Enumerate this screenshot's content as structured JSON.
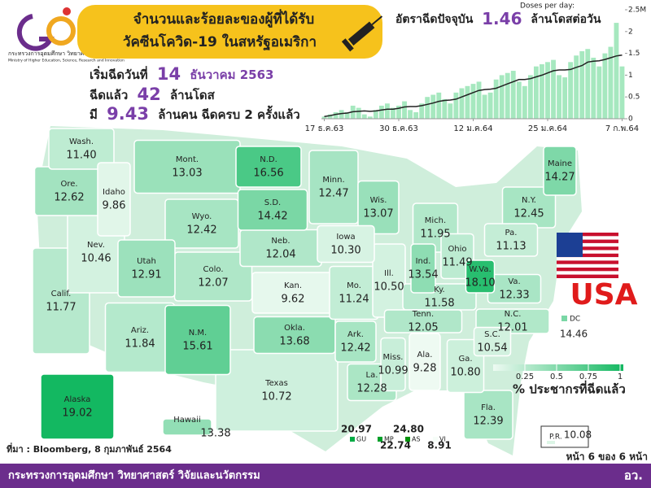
{
  "header": {
    "org": "กระทรวงการอุดมศึกษา วิทยาศาสตร์ วิจัยและนวัตกรรม",
    "org_en": "Ministry of Higher Education, Science, Research and Innovation",
    "title_lines": [
      "จำนวนและร้อยละของผู้ที่ได้รับ",
      "วัคซีนโควิด-19 ในสหรัฐอเมริกา"
    ]
  },
  "stats": {
    "start": {
      "prefix": "เริ่มฉีดวันที่",
      "value": 14,
      "suffix": "ธันวาคม 2563"
    },
    "doses": {
      "prefix": "ฉีดแล้ว",
      "value": 42,
      "suffix": "ล้านโดส"
    },
    "full": {
      "prefix": "มี",
      "value": 9.43,
      "suffix": "ล้านคน ฉีดครบ 2 ครั้งแล้ว"
    },
    "rate": {
      "prefix": "อัตราฉีดปัจจุบัน",
      "value": 1.46,
      "suffix": "ล้านโดสต่อวัน"
    }
  },
  "chart_data": {
    "type": "bar",
    "title": "Doses per day:",
    "color": "#a6e8bf",
    "line_color": "#222222",
    "categories": [
      "17 ธ.ค.63",
      null,
      null,
      null,
      null,
      null,
      null,
      null,
      null,
      null,
      null,
      null,
      null,
      "30 ธ.ค.63",
      null,
      null,
      null,
      null,
      null,
      null,
      null,
      null,
      null,
      null,
      null,
      null,
      "12 ม.ค.64",
      null,
      null,
      null,
      null,
      null,
      null,
      null,
      null,
      null,
      null,
      null,
      null,
      "25 ม.ค.64",
      null,
      null,
      null,
      null,
      null,
      null,
      null,
      null,
      null,
      null,
      null,
      null,
      "7 ก.พ.64"
    ],
    "values": [
      0.05,
      0.1,
      0.15,
      0.2,
      0.15,
      0.3,
      0.25,
      0.1,
      0.05,
      0.2,
      0.3,
      0.35,
      0.25,
      0.3,
      0.4,
      0.2,
      0.15,
      0.35,
      0.5,
      0.55,
      0.6,
      0.45,
      0.35,
      0.6,
      0.7,
      0.75,
      0.8,
      0.85,
      0.55,
      0.6,
      0.9,
      1.0,
      1.05,
      1.1,
      0.85,
      0.75,
      1.0,
      1.2,
      1.25,
      1.3,
      1.35,
      1.0,
      0.95,
      1.3,
      1.45,
      1.55,
      1.6,
      1.4,
      1.2,
      1.5,
      1.65,
      2.2,
      1.2
    ],
    "line_values": [
      0.05,
      0.07,
      0.1,
      0.12,
      0.13,
      0.16,
      0.17,
      0.18,
      0.17,
      0.18,
      0.2,
      0.22,
      0.22,
      0.24,
      0.27,
      0.28,
      0.28,
      0.3,
      0.33,
      0.36,
      0.4,
      0.42,
      0.43,
      0.45,
      0.5,
      0.55,
      0.6,
      0.65,
      0.67,
      0.68,
      0.7,
      0.75,
      0.8,
      0.85,
      0.9,
      0.9,
      0.92,
      0.96,
      1.0,
      1.05,
      1.1,
      1.12,
      1.12,
      1.13,
      1.18,
      1.22,
      1.3,
      1.32,
      1.33,
      1.36,
      1.4,
      1.44,
      1.46
    ],
    "ylim": [
      0,
      2.5
    ],
    "yticks": [
      0,
      0.5,
      1,
      1.5,
      2,
      {
        "value": 2.5,
        "label": "2.5M"
      }
    ]
  },
  "map": {
    "names": [
      "Wash.",
      "Ore.",
      "Idaho",
      "Mont.",
      "N.D.",
      "S.D.",
      "Minn.",
      "Wis.",
      "Wyo.",
      "Nev.",
      "Calif.",
      "Utah",
      "Colo.",
      "Neb.",
      "Iowa",
      "Ill.",
      "Kan.",
      "Mo.",
      "Ariz.",
      "N.M.",
      "Okla.",
      "Texas",
      "Ark.",
      "La.",
      "Miss.",
      "Ala.",
      "Tenn.",
      "Ky.",
      "Ind.",
      "Mich.",
      "Ohio",
      "W.Va.",
      "Va.",
      "Pa.",
      "N.Y.",
      "Maine",
      "N.C.",
      "S.C.",
      "Ga.",
      "Fla.",
      "Alaska",
      "Hawaii",
      "DC",
      "P.R."
    ],
    "values": [
      11.4,
      12.62,
      9.86,
      13.03,
      16.56,
      14.42,
      12.47,
      13.07,
      12.42,
      10.46,
      11.77,
      12.91,
      12.07,
      12.04,
      10.3,
      10.5,
      9.62,
      11.24,
      11.84,
      15.61,
      13.68,
      10.72,
      12.42,
      12.28,
      10.99,
      9.28,
      12.05,
      11.58,
      13.54,
      11.95,
      11.49,
      18.1,
      12.33,
      11.13,
      12.45,
      14.27,
      12.01,
      10.54,
      10.8,
      12.39,
      19.02,
      13.38,
      14.46,
      10.08
    ],
    "value_labels": [
      "11.40",
      "12.62",
      "9.86",
      "13.03",
      "16.56",
      "14.42",
      "12.47",
      "13.07",
      "12.42",
      "10.46",
      "11.77",
      "12.91",
      "12.07",
      "12.04",
      "10.30",
      "10.50",
      "9.62",
      "11.24",
      "11.84",
      "15.61",
      "13.68",
      "10.72",
      "12.42",
      "12.28",
      "10.99",
      "9.28",
      "12.05",
      "11.58",
      "13.54",
      "11.95",
      "11.49",
      "18.10",
      "12.33",
      "11.13",
      "12.45",
      "14.27",
      "12.01",
      "10.54",
      "10.80",
      "12.39",
      "19.02",
      "13.38",
      "14.46",
      "10.08"
    ],
    "color_scale": [
      "#eefaf2",
      "#13b861"
    ]
  },
  "territories": {
    "names": [
      "GU",
      "MP",
      "AS",
      "VI"
    ],
    "values": [
      20.97,
      22.74,
      24.8,
      8.91
    ],
    "value_labels": [
      "20.97",
      "22.74",
      "24.80",
      "8.91"
    ]
  },
  "legend": {
    "ticks": [
      0.25,
      0.5,
      {
        "value": 0.75,
        "label": "0.75"
      },
      1
    ],
    "title": "% ประชากรที่ฉีดแล้ว"
  },
  "country": "USA",
  "source": "ที่มา : Bloomberg, 8 กุมภาพันธ์ 2564",
  "page": "หน้า 6 ของ 6 หน้า",
  "footer": {
    "text": "กระทรวงการอุดมศึกษา วิทยาศาสตร์ วิจัยและนวัตกรรม",
    "short": "อว."
  }
}
